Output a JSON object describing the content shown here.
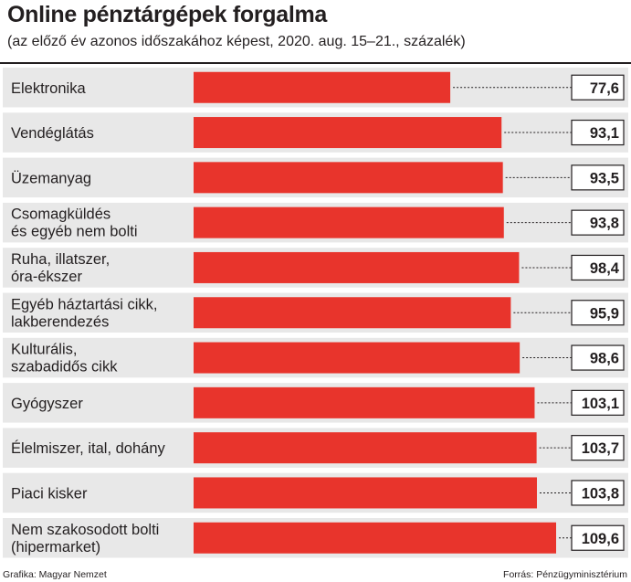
{
  "header": {
    "title": "Online pénztárgépek forgalma",
    "subtitle": "(az előző év azonos időszakához képest, 2020. aug. 15–21., százalék)"
  },
  "footer": {
    "credit": "Grafika: Magyar Nemzet",
    "source": "Forrás: Pénzügyminisztérium"
  },
  "colors": {
    "bar": "#e8342c",
    "row_background": "#e8e8e8",
    "text": "#231f20"
  },
  "chart_data": {
    "type": "bar",
    "orientation": "horizontal",
    "categories": [
      [
        "Elektronika"
      ],
      [
        "Vendéglátás"
      ],
      [
        "Üzemanyag"
      ],
      [
        "Csomagküldés",
        "és egyéb nem bolti"
      ],
      [
        "Ruha, illatszer,",
        "óra-ékszer"
      ],
      [
        "Egyéb háztartási cikk,",
        "lakberendezés"
      ],
      [
        "Kulturális,",
        "szabadidős cikk"
      ],
      [
        "Gyógyszer"
      ],
      [
        "Élelmiszer, ital, dohány"
      ],
      [
        "Piaci kisker"
      ],
      [
        "Nem szakosodott bolti",
        "(hipermarket)"
      ]
    ],
    "values": [
      77.6,
      93.1,
      93.5,
      93.8,
      98.4,
      95.9,
      98.6,
      103.1,
      103.7,
      103.8,
      109.6
    ],
    "value_labels": [
      "77,6",
      "93,1",
      "93,5",
      "93,8",
      "98,4",
      "95,9",
      "98,6",
      "103,1",
      "103,7",
      "103,8",
      "109,6"
    ],
    "xlim": [
      0,
      109.6
    ],
    "grid": false,
    "legend": "none"
  }
}
